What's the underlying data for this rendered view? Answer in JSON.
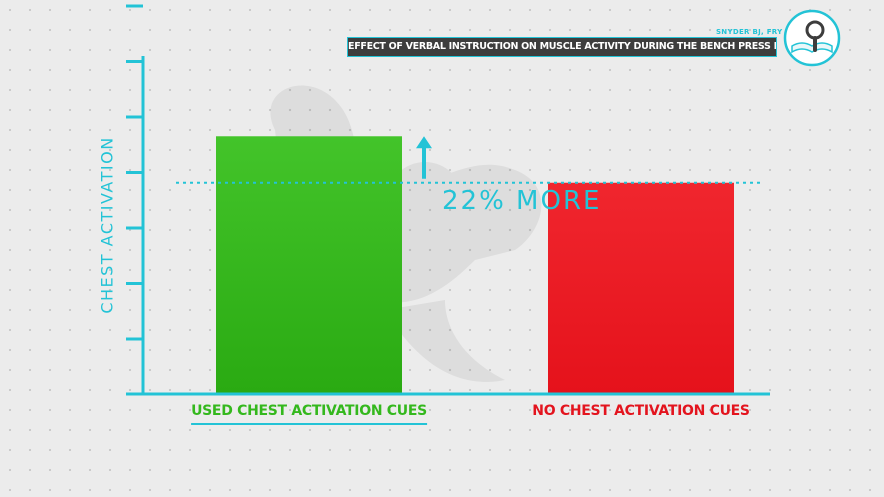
{
  "source": {
    "author": "SNYDER BJ, FRY WR.",
    "title": "EFFECT OF VERBAL INSTRUCTION ON MUSCLE ACTIVITY DURING THE BENCH PRESS EXERCISE"
  },
  "colors": {
    "accent": "#23c3d6",
    "green_bar": "#34b81d",
    "red_bar": "#ee1c24",
    "background": "#ececec"
  },
  "icons": {
    "logo": "book-magnifier-icon",
    "watermark": "flexed-arm-icon"
  },
  "chart_data": {
    "type": "bar",
    "title": "",
    "xlabel": "",
    "ylabel": "CHEST ACTIVATION",
    "categories": [
      "USED CHEST ACTIVATION CUES",
      "NO CHEST ACTIVATION CUES"
    ],
    "values": [
      122,
      100
    ],
    "ylim": [
      0,
      160
    ],
    "y_ticks": 7,
    "reference_line": 100,
    "annotation": "22% MORE",
    "grid": false,
    "legend": "none"
  }
}
